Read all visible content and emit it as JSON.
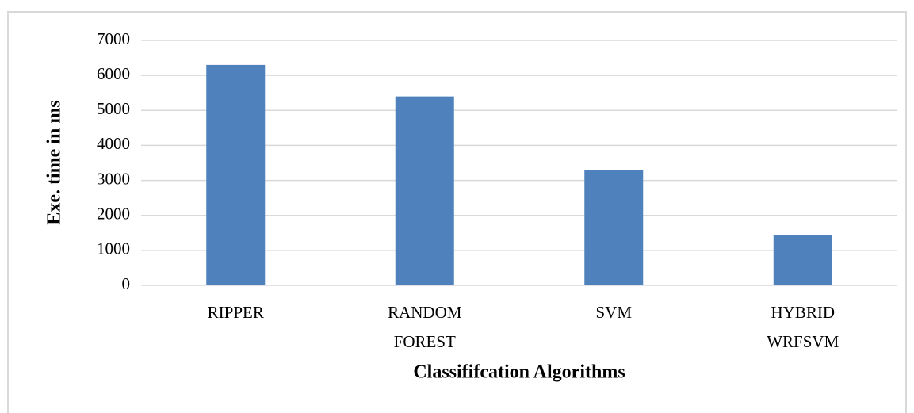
{
  "chart_data": {
    "type": "bar",
    "x_label": "Classififcation  Algorithms",
    "y_label": "Exe. time in ms",
    "categories": [
      "RIPPER",
      "RANDOM FOREST",
      "SVM",
      "HYBRID WRFSVM"
    ],
    "values": [
      6300,
      5400,
      3300,
      1450
    ],
    "color": "#4f81bd",
    "ylim": [
      0,
      7000
    ],
    "yticks": [
      0,
      1000,
      2000,
      3000,
      4000,
      5000,
      6000,
      7000
    ],
    "grid": true
  }
}
